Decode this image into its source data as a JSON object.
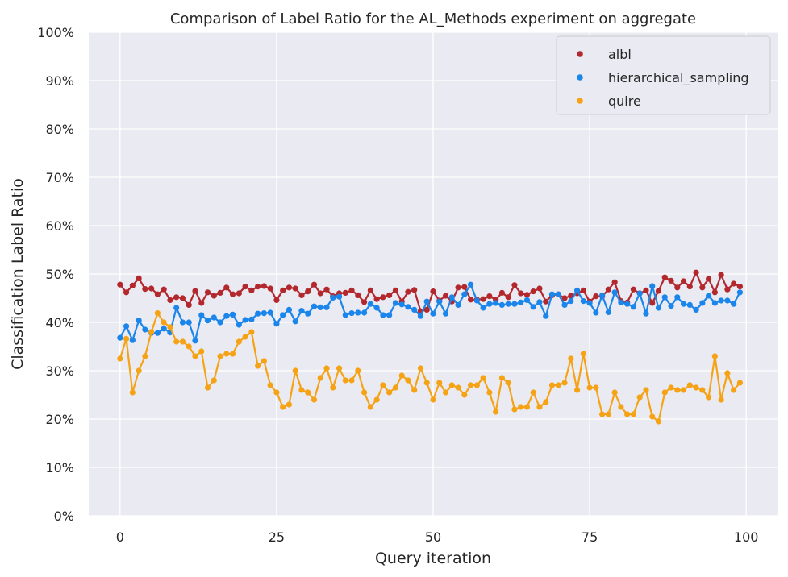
{
  "chart_data": {
    "type": "line",
    "title": "Comparison of Label Ratio for the AL_Methods experiment on aggregate",
    "xlabel": "Query iteration",
    "ylabel": "Classification Label Ratio",
    "xlim": [
      -5,
      105
    ],
    "ylim": [
      0,
      1
    ],
    "xticks": [
      0,
      25,
      50,
      75,
      100
    ],
    "yticks": [
      0,
      0.1,
      0.2,
      0.3,
      0.4,
      0.5,
      0.6,
      0.7,
      0.8,
      0.9,
      1.0
    ],
    "ytick_labels": [
      "0%",
      "10%",
      "20%",
      "30%",
      "40%",
      "50%",
      "60%",
      "70%",
      "80%",
      "90%",
      "100%"
    ],
    "grid": true,
    "legend": "top-right",
    "series": [
      {
        "name": "albl",
        "color": "#b2282d",
        "values": [
          0.478,
          0.462,
          0.476,
          0.491,
          0.469,
          0.47,
          0.458,
          0.468,
          0.446,
          0.452,
          0.45,
          0.436,
          0.465,
          0.44,
          0.462,
          0.455,
          0.461,
          0.472,
          0.458,
          0.46,
          0.474,
          0.466,
          0.474,
          0.475,
          0.47,
          0.446,
          0.466,
          0.472,
          0.47,
          0.456,
          0.464,
          0.478,
          0.46,
          0.468,
          0.454,
          0.46,
          0.461,
          0.466,
          0.456,
          0.442,
          0.466,
          0.448,
          0.452,
          0.456,
          0.466,
          0.443,
          0.463,
          0.467,
          0.423,
          0.426,
          0.464,
          0.445,
          0.455,
          0.443,
          0.472,
          0.473,
          0.447,
          0.447,
          0.448,
          0.454,
          0.447,
          0.461,
          0.452,
          0.477,
          0.46,
          0.457,
          0.464,
          0.47,
          0.443,
          0.456,
          0.458,
          0.45,
          0.455,
          0.46,
          0.466,
          0.443,
          0.454,
          0.454,
          0.468,
          0.483,
          0.444,
          0.441,
          0.468,
          0.46,
          0.466,
          0.44,
          0.465,
          0.493,
          0.486,
          0.472,
          0.485,
          0.474,
          0.503,
          0.472,
          0.49,
          0.462,
          0.498,
          0.468,
          0.48,
          0.474
        ]
      },
      {
        "name": "hierarchical_sampling",
        "color": "#1a85ea",
        "values": [
          0.368,
          0.392,
          0.363,
          0.404,
          0.385,
          0.378,
          0.378,
          0.387,
          0.379,
          0.43,
          0.4,
          0.4,
          0.362,
          0.415,
          0.404,
          0.41,
          0.4,
          0.413,
          0.416,
          0.395,
          0.405,
          0.406,
          0.418,
          0.419,
          0.42,
          0.397,
          0.415,
          0.426,
          0.402,
          0.424,
          0.418,
          0.433,
          0.431,
          0.431,
          0.451,
          0.453,
          0.415,
          0.419,
          0.42,
          0.42,
          0.438,
          0.43,
          0.415,
          0.415,
          0.44,
          0.437,
          0.432,
          0.426,
          0.413,
          0.443,
          0.418,
          0.443,
          0.418,
          0.452,
          0.436,
          0.458,
          0.478,
          0.445,
          0.43,
          0.438,
          0.44,
          0.436,
          0.438,
          0.438,
          0.441,
          0.446,
          0.432,
          0.442,
          0.413,
          0.458,
          0.458,
          0.436,
          0.444,
          0.466,
          0.444,
          0.44,
          0.42,
          0.456,
          0.421,
          0.462,
          0.441,
          0.438,
          0.432,
          0.46,
          0.418,
          0.475,
          0.43,
          0.452,
          0.434,
          0.452,
          0.438,
          0.436,
          0.426,
          0.44,
          0.455,
          0.44,
          0.445,
          0.445,
          0.438,
          0.462
        ]
      },
      {
        "name": "quire",
        "color": "#f5a315",
        "values": [
          0.325,
          0.366,
          0.255,
          0.3,
          0.33,
          0.38,
          0.419,
          0.4,
          0.39,
          0.36,
          0.36,
          0.35,
          0.33,
          0.34,
          0.265,
          0.28,
          0.33,
          0.335,
          0.335,
          0.36,
          0.37,
          0.38,
          0.31,
          0.32,
          0.27,
          0.255,
          0.225,
          0.23,
          0.3,
          0.26,
          0.255,
          0.24,
          0.285,
          0.305,
          0.265,
          0.305,
          0.28,
          0.28,
          0.3,
          0.255,
          0.225,
          0.24,
          0.27,
          0.255,
          0.265,
          0.29,
          0.28,
          0.26,
          0.305,
          0.275,
          0.24,
          0.275,
          0.255,
          0.27,
          0.265,
          0.25,
          0.27,
          0.27,
          0.285,
          0.255,
          0.215,
          0.285,
          0.275,
          0.22,
          0.225,
          0.225,
          0.255,
          0.225,
          0.235,
          0.27,
          0.27,
          0.275,
          0.325,
          0.26,
          0.335,
          0.265,
          0.265,
          0.21,
          0.21,
          0.255,
          0.225,
          0.21,
          0.21,
          0.245,
          0.26,
          0.205,
          0.195,
          0.255,
          0.265,
          0.26,
          0.26,
          0.27,
          0.265,
          0.26,
          0.245,
          0.33,
          0.24,
          0.295,
          0.26,
          0.275
        ]
      }
    ]
  }
}
